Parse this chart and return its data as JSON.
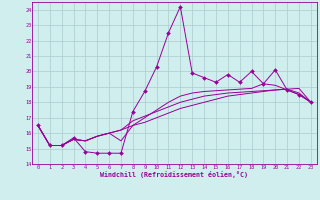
{
  "xlabel": "Windchill (Refroidissement éolien,°C)",
  "x_values": [
    0,
    1,
    2,
    3,
    4,
    5,
    6,
    7,
    8,
    9,
    10,
    11,
    12,
    13,
    14,
    15,
    16,
    17,
    18,
    19,
    20,
    21,
    22,
    23
  ],
  "line1_y": [
    16.5,
    15.2,
    15.2,
    15.7,
    14.8,
    14.7,
    14.7,
    14.7,
    17.4,
    18.7,
    20.3,
    22.5,
    24.2,
    19.9,
    19.6,
    19.3,
    19.8,
    19.3,
    20.0,
    19.2,
    20.1,
    18.8,
    18.5,
    18.0
  ],
  "line2_y": [
    16.5,
    15.2,
    15.2,
    15.6,
    15.5,
    15.8,
    16.0,
    16.2,
    16.5,
    16.7,
    17.0,
    17.3,
    17.6,
    17.8,
    18.0,
    18.2,
    18.4,
    18.5,
    18.6,
    18.7,
    18.8,
    18.85,
    18.9,
    18.0
  ],
  "line3_y": [
    16.5,
    15.2,
    15.2,
    15.6,
    15.5,
    15.8,
    16.0,
    16.2,
    16.8,
    17.1,
    17.4,
    17.7,
    18.0,
    18.2,
    18.4,
    18.5,
    18.6,
    18.65,
    18.7,
    18.75,
    18.8,
    18.85,
    18.6,
    18.0
  ],
  "line4_y": [
    16.5,
    15.2,
    15.2,
    15.6,
    15.5,
    15.8,
    16.0,
    15.5,
    16.5,
    17.0,
    17.5,
    18.0,
    18.4,
    18.6,
    18.7,
    18.75,
    18.8,
    18.85,
    18.9,
    19.2,
    19.1,
    18.8,
    18.5,
    18.0
  ],
  "ylim": [
    14,
    24.5
  ],
  "xlim": [
    -0.5,
    23.5
  ],
  "bg_color": "#d0eeee",
  "line_color": "#990099",
  "grid_color": "#aacccc",
  "marker": "D",
  "marker_size": 2.0,
  "linewidth": 0.7
}
